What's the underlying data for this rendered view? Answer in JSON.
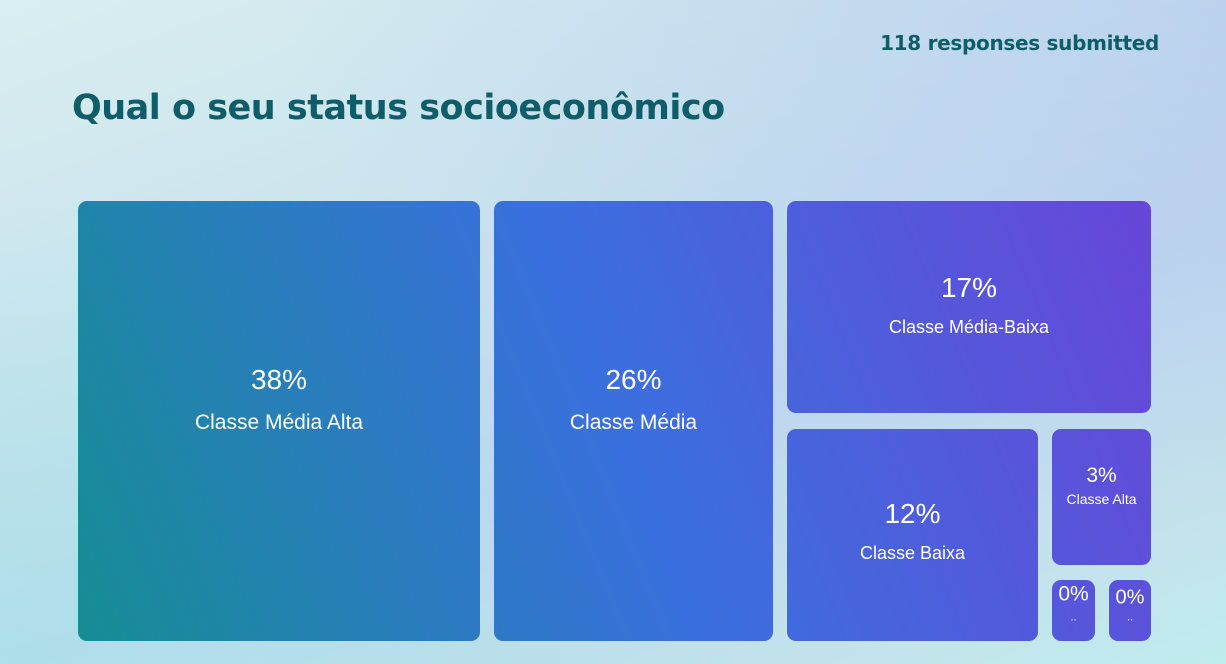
{
  "header": {
    "responses_text": "118 responses submitted"
  },
  "question": {
    "title": "Qual o seu status socioeconômico"
  },
  "colors": {
    "gradient_start": "#168d94",
    "gradient_mid": "#3a70de",
    "gradient_end": "#6846d9",
    "text": "#0f5d68"
  },
  "chart_data": {
    "type": "treemap",
    "title": "Qual o seu status socioeconômico",
    "items": [
      {
        "label": "Classe Média Alta",
        "percent_label": "38%",
        "value": 38
      },
      {
        "label": "Classe Média",
        "percent_label": "26%",
        "value": 26
      },
      {
        "label": "Classe Média-Baixa",
        "percent_label": "17%",
        "value": 17
      },
      {
        "label": "Classe Baixa",
        "percent_label": "12%",
        "value": 12
      },
      {
        "label": "Classe Alta",
        "percent_label": "3%",
        "value": 3
      },
      {
        "label": "..",
        "percent_label": "0%",
        "value": 0
      },
      {
        "label": "..",
        "percent_label": "0%",
        "value": 0
      }
    ]
  }
}
